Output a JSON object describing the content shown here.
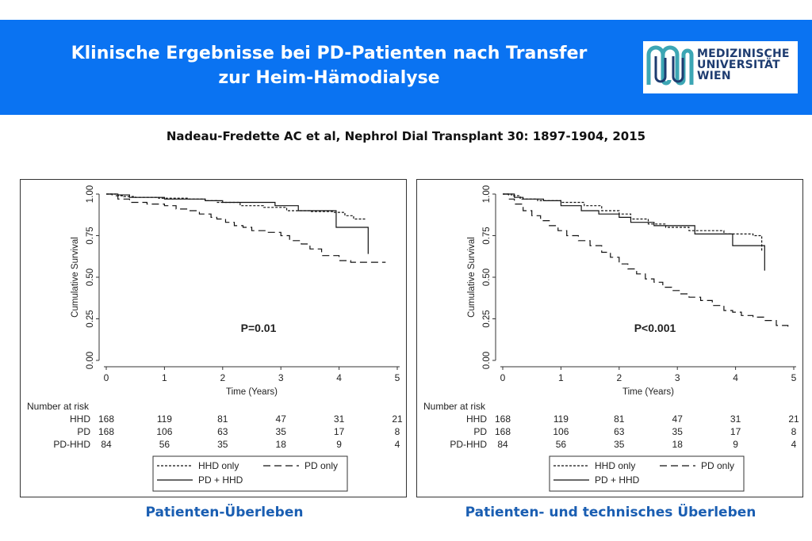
{
  "header": {
    "title_line1": "Klinische Ergebnisse bei PD-Patienten nach Transfer",
    "title_line2": "zur Heim-Hämodialyse",
    "logo_lines": [
      "MEDIZINISCHE",
      "UNIVERSITÄT",
      "WIEN"
    ]
  },
  "citation": "Nadeau-Fredette AC et al, Nephrol Dial Transplant 30: 1897-1904, 2015",
  "colors": {
    "banner": "#0a73f2",
    "caption": "#1a5eb2",
    "logo_teal": "#3ca6b4",
    "logo_navy": "#1e3c70"
  },
  "captions": [
    "Patienten-Überleben",
    "Patienten- und technisches Überleben"
  ],
  "chart_data": [
    {
      "type": "line",
      "step": true,
      "xlabel": "Time (Years)",
      "ylabel": "Cumulative Survival",
      "xlim": [
        0,
        5
      ],
      "ylim": [
        0,
        1
      ],
      "xticks": [
        "0",
        "1",
        "2",
        "3",
        "4",
        "5"
      ],
      "yticks": [
        "0.00",
        "0.25",
        "0.50",
        "0.75",
        "1.00"
      ],
      "annotation": "P=0.01",
      "legend": [
        "HHD only",
        "PD only",
        "PD + HHD"
      ],
      "legend_placement": "bottom",
      "series": [
        {
          "name": "HHD only",
          "style": "dotted",
          "x": [
            0,
            0.2,
            0.3,
            0.5,
            0.9,
            1.4,
            1.7,
            1.9,
            2.3,
            2.7,
            3.1,
            3.5,
            3.9,
            4.1,
            4.25,
            4.45
          ],
          "y": [
            1,
            0.99,
            0.985,
            0.98,
            0.975,
            0.97,
            0.96,
            0.95,
            0.93,
            0.92,
            0.9,
            0.895,
            0.89,
            0.87,
            0.85,
            0.85
          ]
        },
        {
          "name": "PD only",
          "style": "dashed",
          "x": [
            0,
            0.1,
            0.2,
            0.4,
            0.7,
            1.0,
            1.2,
            1.4,
            1.6,
            1.8,
            1.9,
            2.05,
            2.2,
            2.35,
            2.5,
            2.75,
            3.0,
            3.15,
            3.35,
            3.5,
            3.7,
            4.0,
            4.2,
            4.5,
            4.8
          ],
          "y": [
            1,
            0.99,
            0.97,
            0.95,
            0.94,
            0.93,
            0.91,
            0.9,
            0.88,
            0.86,
            0.85,
            0.83,
            0.81,
            0.8,
            0.78,
            0.77,
            0.75,
            0.72,
            0.7,
            0.67,
            0.63,
            0.6,
            0.59,
            0.59,
            0.59
          ]
        },
        {
          "name": "PD + HHD",
          "style": "solid",
          "x": [
            0,
            0.2,
            0.4,
            1.0,
            1.7,
            2.0,
            2.9,
            3.3,
            3.95,
            4.5
          ],
          "y": [
            1,
            0.995,
            0.98,
            0.97,
            0.96,
            0.95,
            0.93,
            0.9,
            0.8,
            0.64
          ]
        }
      ],
      "risk_table": {
        "title": "Number at risk",
        "rows": [
          {
            "label": "HHD",
            "values": [
              "168",
              "119",
              "81",
              "47",
              "31",
              "21"
            ]
          },
          {
            "label": "PD",
            "values": [
              "168",
              "106",
              "63",
              "35",
              "17",
              "8"
            ]
          },
          {
            "label": "PD-HHD",
            "values": [
              "84",
              "56",
              "35",
              "18",
              "9",
              "4"
            ]
          }
        ]
      }
    },
    {
      "type": "line",
      "step": true,
      "xlabel": "Time (Years)",
      "ylabel": "Cumulative Survival",
      "xlim": [
        0,
        5
      ],
      "ylim": [
        0,
        1
      ],
      "xticks": [
        "0",
        "1",
        "2",
        "3",
        "4",
        "5"
      ],
      "yticks": [
        "0.00",
        "0.25",
        "0.50",
        "0.75",
        "1.00"
      ],
      "annotation": "P<0.001",
      "legend": [
        "HHD only",
        "PD only",
        "PD + HHD"
      ],
      "legend_placement": "bottom",
      "series": [
        {
          "name": "HHD only",
          "style": "dotted",
          "x": [
            0,
            0.15,
            0.3,
            0.6,
            1.0,
            1.4,
            1.7,
            2.0,
            2.2,
            2.5,
            2.8,
            3.2,
            3.8,
            4.3,
            4.45
          ],
          "y": [
            1,
            0.99,
            0.97,
            0.96,
            0.95,
            0.93,
            0.9,
            0.88,
            0.85,
            0.82,
            0.8,
            0.78,
            0.76,
            0.75,
            0.66
          ]
        },
        {
          "name": "PD only",
          "style": "dashed",
          "x": [
            0,
            0.1,
            0.2,
            0.35,
            0.5,
            0.65,
            0.8,
            0.95,
            1.1,
            1.3,
            1.5,
            1.7,
            1.85,
            2.0,
            2.15,
            2.3,
            2.45,
            2.6,
            2.75,
            2.9,
            3.05,
            3.2,
            3.4,
            3.6,
            3.8,
            3.95,
            4.1,
            4.3,
            4.5,
            4.7,
            4.9
          ],
          "y": [
            1,
            0.97,
            0.94,
            0.9,
            0.87,
            0.84,
            0.81,
            0.78,
            0.75,
            0.72,
            0.69,
            0.65,
            0.62,
            0.58,
            0.55,
            0.52,
            0.49,
            0.47,
            0.44,
            0.42,
            0.4,
            0.38,
            0.36,
            0.33,
            0.3,
            0.29,
            0.27,
            0.26,
            0.24,
            0.21,
            0.2
          ]
        },
        {
          "name": "PD + HHD",
          "style": "solid",
          "x": [
            0,
            0.2,
            0.35,
            0.7,
            1.0,
            1.35,
            1.65,
            2.0,
            2.2,
            2.6,
            3.3,
            3.95,
            4.5
          ],
          "y": [
            1,
            0.98,
            0.97,
            0.96,
            0.93,
            0.9,
            0.88,
            0.86,
            0.83,
            0.81,
            0.76,
            0.69,
            0.54
          ]
        }
      ],
      "risk_table": {
        "title": "Number at risk",
        "rows": [
          {
            "label": "HHD",
            "values": [
              "168",
              "119",
              "81",
              "47",
              "31",
              "21"
            ]
          },
          {
            "label": "PD",
            "values": [
              "168",
              "106",
              "63",
              "35",
              "17",
              "8"
            ]
          },
          {
            "label": "PD-HHD",
            "values": [
              "84",
              "56",
              "35",
              "18",
              "9",
              "4"
            ]
          }
        ]
      }
    }
  ]
}
